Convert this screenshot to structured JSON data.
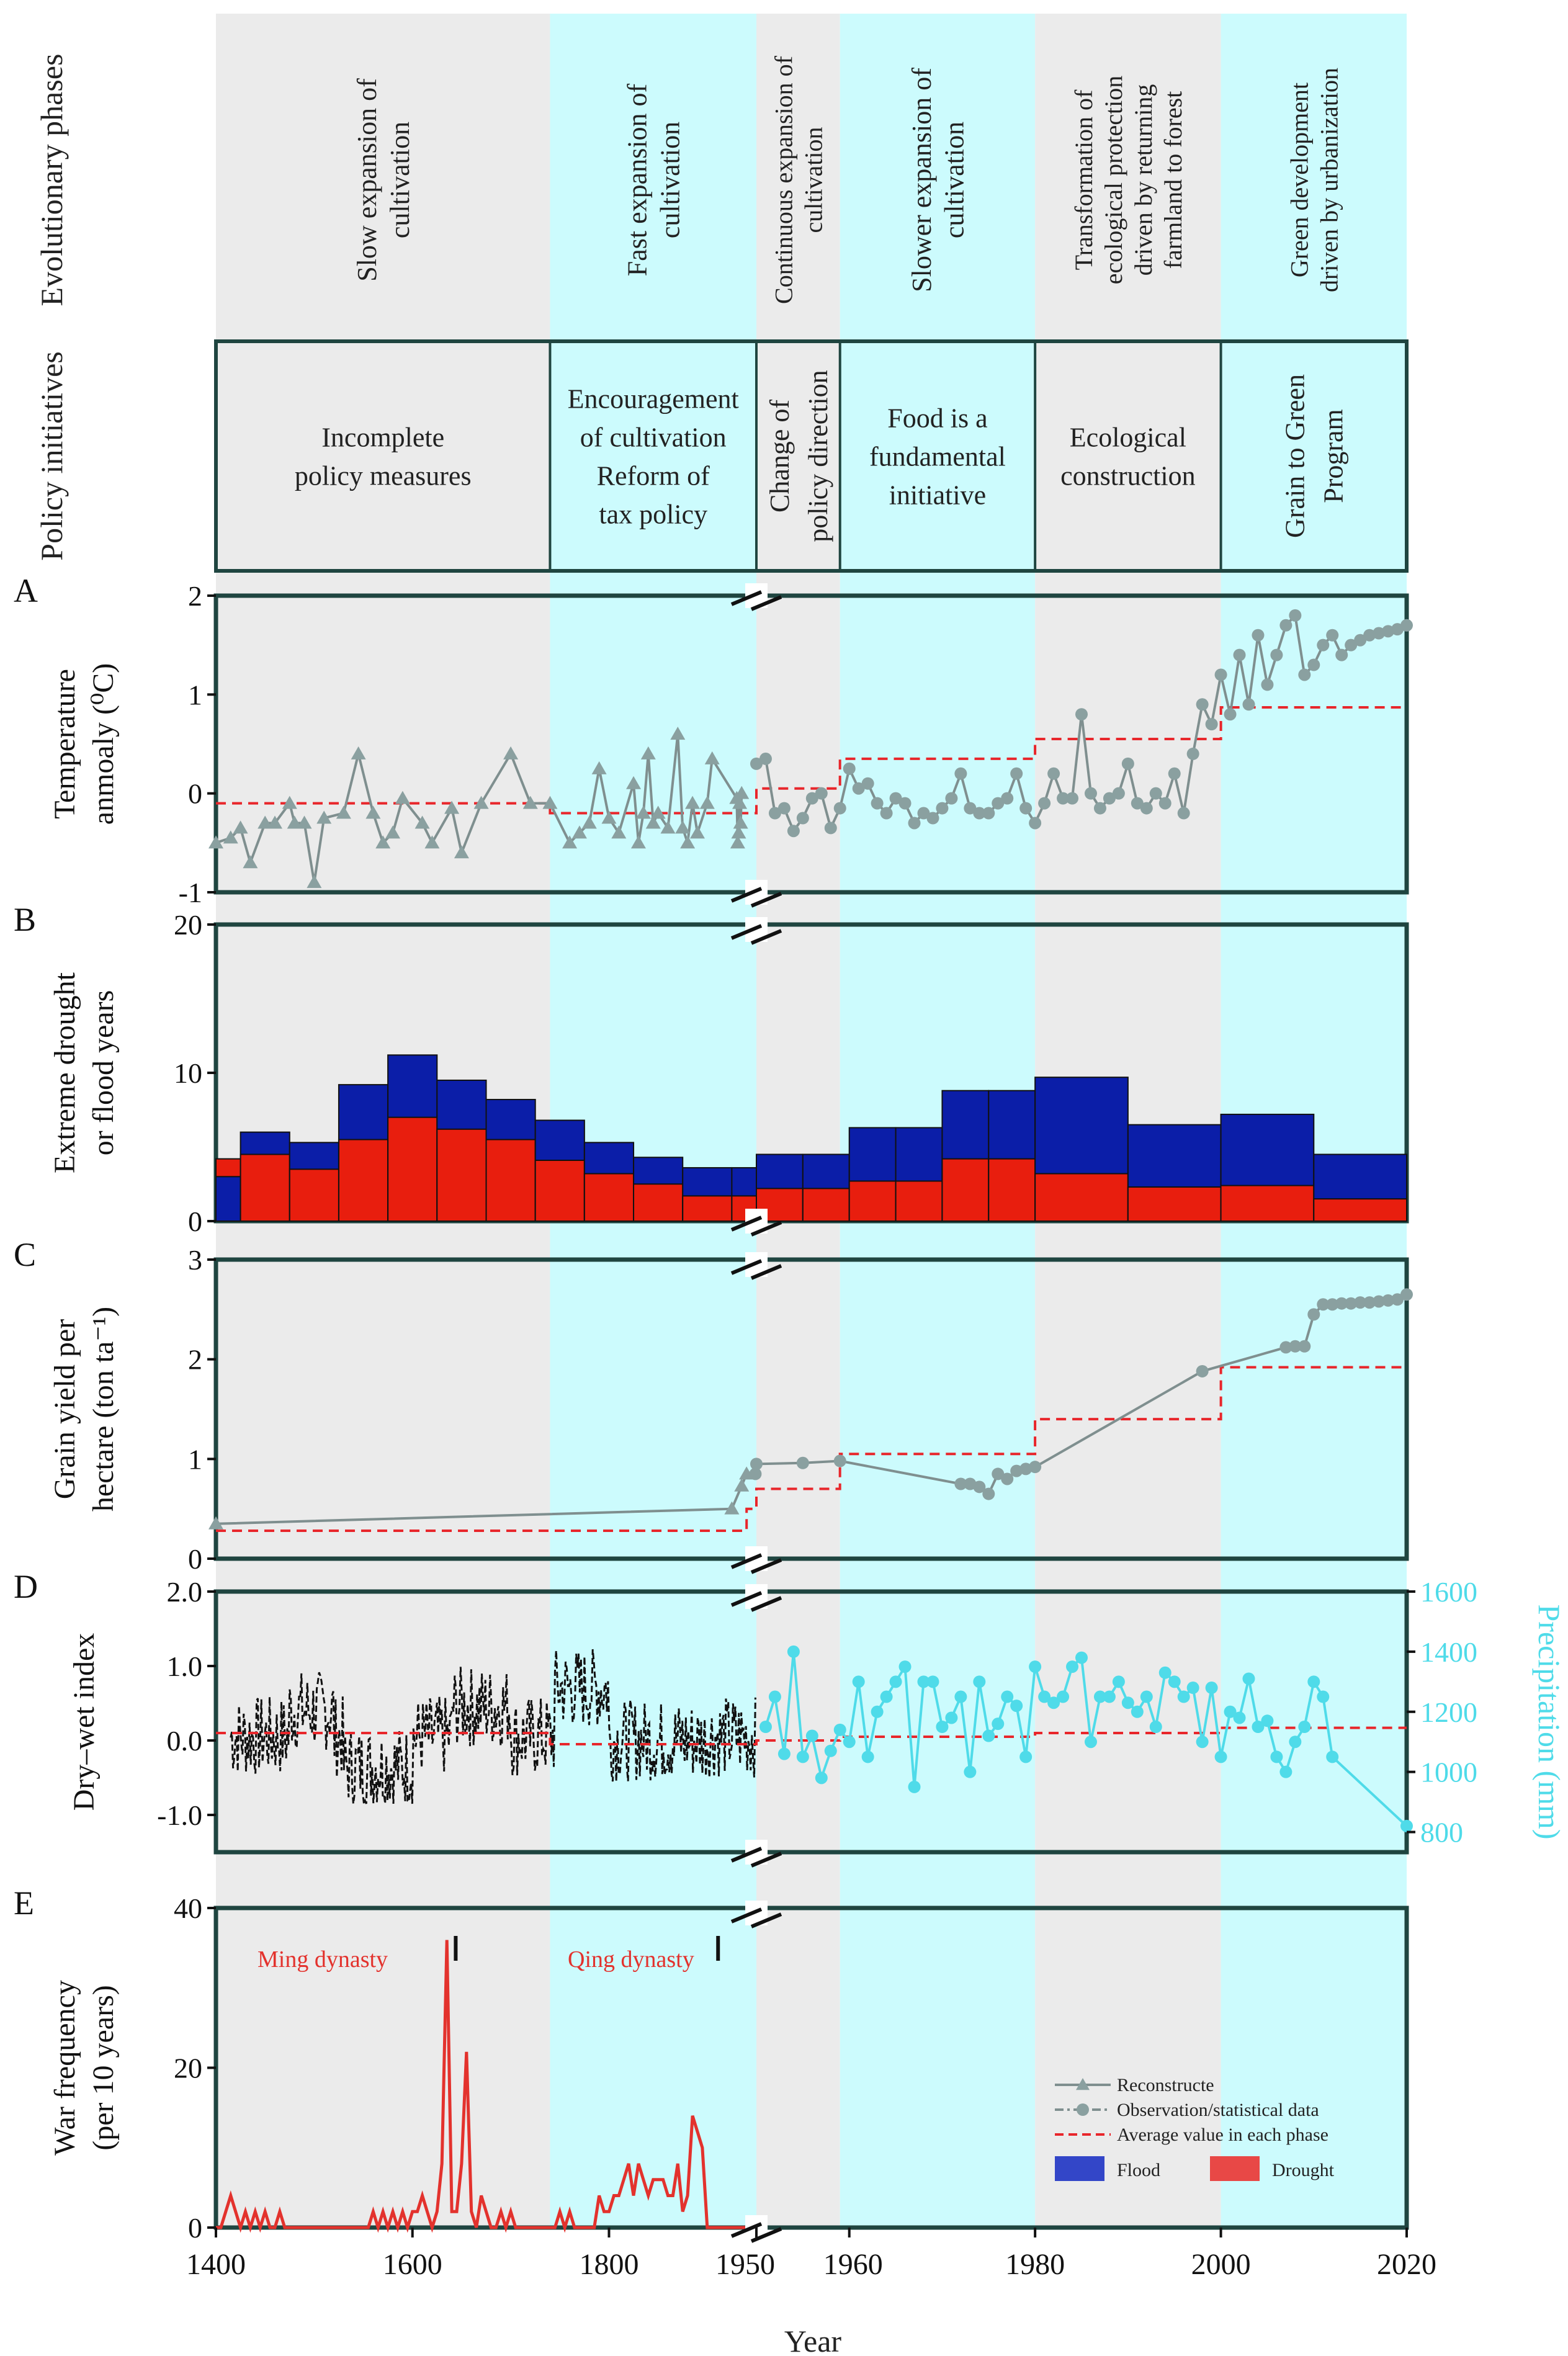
{
  "row_labels": {
    "phases": "Evolutionary phases",
    "policies": "Policy initiatives"
  },
  "phases": [
    {
      "from": 1400,
      "to": 1740,
      "shade": "gray",
      "label": "Slow expansion of cultivation",
      "policy": "Incomplete policy measures"
    },
    {
      "from": 1740,
      "to": 1950,
      "shade": "cyan",
      "label": "Fast expansion of cultivation",
      "policy": "Encouragement of cultivation Reform of tax policy"
    },
    {
      "from": 1950,
      "to": 1959,
      "shade": "gray",
      "label": "Continuous expansion of cultivation",
      "policy": "Change of policy direction"
    },
    {
      "from": 1959,
      "to": 1980,
      "shade": "cyan",
      "label": "Slower expansion of cultivation",
      "policy": "Food is a fundamental initiative"
    },
    {
      "from": 1980,
      "to": 2000,
      "shade": "gray",
      "label": "Transformation of ecological protection driven by returning farmland to forest",
      "policy": "Ecological construction"
    },
    {
      "from": 2000,
      "to": 2020,
      "shade": "cyan",
      "label": "Green development driven by urbanization",
      "policy": "Grain to Green Program"
    }
  ],
  "chart_data": [
    {
      "id": "A",
      "type": "line",
      "ylabel": "Temperature anmoaly (⁰C)",
      "ylim": [
        -1,
        2
      ],
      "yticks": [
        "-1",
        "0",
        "1",
        "2"
      ],
      "series": [
        {
          "name": "Reconstructe",
          "x": [
            1400,
            1415,
            1425,
            1435,
            1450,
            1460,
            1475,
            1480,
            1490,
            1500,
            1510,
            1530,
            1545,
            1560,
            1570,
            1580,
            1590,
            1610,
            1620,
            1640,
            1650,
            1670,
            1700,
            1720,
            1740,
            1760,
            1770,
            1780,
            1790,
            1800,
            1810,
            1825,
            1830,
            1835,
            1840,
            1845,
            1850,
            1860,
            1870,
            1875,
            1880,
            1885,
            1890,
            1900,
            1905,
            1930,
            1931,
            1932,
            1933,
            1934,
            1935
          ],
          "y": [
            -0.5,
            -0.45,
            -0.35,
            -0.7,
            -0.3,
            -0.3,
            -0.1,
            -0.3,
            -0.3,
            -0.9,
            -0.25,
            -0.2,
            0.4,
            -0.2,
            -0.5,
            -0.4,
            -0.05,
            -0.3,
            -0.5,
            -0.15,
            -0.6,
            -0.1,
            0.4,
            -0.1,
            -0.1,
            -0.5,
            -0.4,
            -0.3,
            0.25,
            -0.25,
            -0.4,
            0.1,
            -0.5,
            -0.2,
            0.4,
            -0.3,
            -0.2,
            -0.35,
            0.6,
            -0.35,
            -0.5,
            -0.1,
            -0.4,
            -0.1,
            0.35,
            -0.05,
            -0.5,
            -0.4,
            -0.1,
            -0.3,
            0.0
          ]
        },
        {
          "name": "Observation/statistical data",
          "x": [
            1950,
            1951,
            1952,
            1953,
            1954,
            1955,
            1956,
            1957,
            1958,
            1959,
            1960,
            1961,
            1962,
            1963,
            1964,
            1965,
            1966,
            1967,
            1968,
            1969,
            1970,
            1971,
            1972,
            1973,
            1974,
            1975,
            1976,
            1977,
            1978,
            1979,
            1980,
            1981,
            1982,
            1983,
            1984,
            1985,
            1986,
            1987,
            1988,
            1989,
            1990,
            1991,
            1992,
            1993,
            1994,
            1995,
            1996,
            1997,
            1998,
            1999,
            2000,
            2001,
            2002,
            2003,
            2004,
            2005,
            2006,
            2007,
            2008,
            2009,
            2010,
            2011,
            2012,
            2013,
            2014,
            2015,
            2016,
            2017,
            2018,
            2019,
            2020
          ],
          "y": [
            0.3,
            0.35,
            -0.2,
            -0.15,
            -0.38,
            -0.25,
            -0.05,
            0.0,
            -0.35,
            -0.15,
            0.25,
            0.05,
            0.1,
            -0.1,
            -0.2,
            -0.05,
            -0.1,
            -0.3,
            -0.2,
            -0.25,
            -0.15,
            -0.05,
            0.2,
            -0.15,
            -0.2,
            -0.2,
            -0.1,
            -0.05,
            0.2,
            -0.15,
            -0.3,
            -0.1,
            0.2,
            -0.05,
            -0.05,
            0.8,
            0.0,
            -0.15,
            -0.05,
            0.0,
            0.3,
            -0.1,
            -0.15,
            0.0,
            -0.1,
            0.2,
            -0.2,
            0.4,
            0.9,
            0.7,
            1.2,
            0.8,
            1.4,
            0.9,
            1.6,
            1.1,
            1.4,
            1.7,
            1.8,
            1.2,
            1.3,
            1.5,
            1.6,
            1.4,
            1.5,
            1.55,
            1.6,
            1.62,
            1.64,
            1.66,
            1.7
          ]
        },
        {
          "name": "Average value in each phase",
          "x": [
            1400,
            1740,
            1740,
            1950,
            1950,
            1959,
            1959,
            1980,
            1980,
            2000,
            2000,
            2020
          ],
          "y": [
            -0.1,
            -0.1,
            -0.2,
            -0.2,
            0.05,
            0.05,
            0.35,
            0.35,
            0.55,
            0.55,
            0.87,
            0.87
          ]
        }
      ]
    },
    {
      "id": "B",
      "type": "bar",
      "ylabel": "Extreme drought or flood years",
      "ylim": [
        0,
        20
      ],
      "yticks": [
        "0",
        "10",
        "20"
      ],
      "bins": [
        [
          1400,
          1425
        ],
        [
          1425,
          1475
        ],
        [
          1475,
          1525
        ],
        [
          1525,
          1575
        ],
        [
          1575,
          1625
        ],
        [
          1625,
          1675
        ],
        [
          1675,
          1725
        ],
        [
          1725,
          1775
        ],
        [
          1775,
          1825
        ],
        [
          1825,
          1875
        ],
        [
          1875,
          1925
        ],
        [
          1925,
          1950
        ],
        [
          1950,
          1955
        ],
        [
          1955,
          1960
        ],
        [
          1960,
          1965
        ],
        [
          1965,
          1970
        ],
        [
          1970,
          1975
        ],
        [
          1975,
          1980
        ],
        [
          1980,
          1990
        ],
        [
          1990,
          2000
        ],
        [
          2000,
          2010
        ],
        [
          2010,
          2020
        ]
      ],
      "series": [
        {
          "name": "Flood",
          "values": [
            3.0,
            6.0,
            5.3,
            9.2,
            11.2,
            9.5,
            8.2,
            6.8,
            5.3,
            4.3,
            3.6,
            3.6,
            4.5,
            4.5,
            6.3,
            6.3,
            8.8,
            8.8,
            9.7,
            6.5,
            7.2,
            4.5
          ]
        },
        {
          "name": "Drought",
          "values": [
            4.2,
            4.5,
            3.5,
            5.5,
            7.0,
            6.2,
            5.5,
            4.1,
            3.2,
            2.5,
            1.7,
            1.7,
            2.2,
            2.2,
            2.7,
            2.7,
            4.2,
            4.2,
            3.2,
            2.3,
            2.4,
            1.5
          ]
        }
      ]
    },
    {
      "id": "C",
      "type": "line",
      "ylabel": "Grain yield per hectare (ton ta⁻¹)",
      "ylim": [
        0,
        3
      ],
      "yticks": [
        "0",
        "1",
        "2",
        "3"
      ],
      "series": [
        {
          "name": "Reconstructe",
          "x": [
            1400,
            1925,
            1935,
            1940
          ],
          "y": [
            0.35,
            0.5,
            0.73,
            0.85
          ]
        },
        {
          "name": "Observation/statistical data",
          "x": [
            1949,
            1950,
            1955,
            1959,
            1972,
            1973,
            1974,
            1975,
            1976,
            1977,
            1978,
            1979,
            1980,
            1998,
            2007,
            2008,
            2009,
            2010,
            2011,
            2012,
            2013,
            2014,
            2015,
            2016,
            2017,
            2018,
            2019,
            2020
          ],
          "y": [
            0.85,
            0.95,
            0.96,
            0.98,
            0.75,
            0.75,
            0.72,
            0.65,
            0.85,
            0.8,
            0.88,
            0.9,
            0.92,
            1.88,
            2.12,
            2.13,
            2.13,
            2.45,
            2.55,
            2.55,
            2.56,
            2.56,
            2.57,
            2.57,
            2.58,
            2.59,
            2.6,
            2.65
          ]
        },
        {
          "name": "Average value in each phase",
          "x": [
            1400,
            1940,
            1940,
            1950,
            1950,
            1959,
            1959,
            1980,
            1980,
            2000,
            2000,
            2020
          ],
          "y": [
            0.28,
            0.28,
            0.5,
            0.5,
            0.7,
            0.7,
            1.05,
            1.05,
            1.4,
            1.4,
            1.92,
            1.92
          ]
        }
      ]
    },
    {
      "id": "D",
      "type": "line",
      "ylabel": "Dry–wet index",
      "y2label": "Precipitation (mm)",
      "ylim": [
        -1.5,
        2.0
      ],
      "yticks": [
        "-1.0",
        "0.0",
        "1.0",
        "2.0"
      ],
      "y2lim": [
        733,
        1600
      ],
      "y2ticks": [
        "800",
        "1000",
        "1200",
        "1400",
        "1600"
      ],
      "series": [
        {
          "name": "Dry–wet index (reconstructe)",
          "seed": 7
        },
        {
          "name": "Precipitation",
          "x": [
            1951,
            1952,
            1953,
            1954,
            1955,
            1956,
            1957,
            1958,
            1959,
            1960,
            1961,
            1962,
            1963,
            1964,
            1965,
            1966,
            1967,
            1968,
            1969,
            1970,
            1971,
            1972,
            1973,
            1974,
            1975,
            1976,
            1977,
            1978,
            1979,
            1980,
            1981,
            1982,
            1983,
            1984,
            1985,
            1986,
            1987,
            1988,
            1989,
            1990,
            1991,
            1992,
            1993,
            1994,
            1995,
            1996,
            1997,
            1998,
            1999,
            2000,
            2001,
            2002,
            2003,
            2004,
            2005,
            2006,
            2007,
            2008,
            2009,
            2010,
            2011,
            2012,
            2020
          ],
          "y": [
            1150,
            1250,
            1060,
            1400,
            1050,
            1120,
            980,
            1070,
            1140,
            1100,
            1300,
            1050,
            1200,
            1250,
            1300,
            1350,
            950,
            1300,
            1300,
            1150,
            1180,
            1250,
            1000,
            1300,
            1120,
            1160,
            1250,
            1220,
            1050,
            1350,
            1250,
            1230,
            1250,
            1350,
            1380,
            1100,
            1250,
            1250,
            1300,
            1230,
            1200,
            1250,
            1150,
            1330,
            1300,
            1250,
            1280,
            1100,
            1280,
            1050,
            1200,
            1180,
            1310,
            1150,
            1170,
            1050,
            1000,
            1100,
            1150,
            1300,
            1250,
            1050,
            820
          ]
        },
        {
          "name": "Average value in each phase",
          "x": [
            1400,
            1740,
            1740,
            1950,
            1950,
            1959,
            1959,
            1980,
            1980,
            2000,
            2000,
            2020
          ],
          "y": [
            0.1,
            0.1,
            -0.05,
            -0.05,
            0.0,
            0.0,
            0.05,
            0.05,
            0.1,
            0.1,
            0.17,
            0.17
          ]
        }
      ]
    },
    {
      "id": "E",
      "type": "line",
      "ylabel": "War frequency (per 10 years)",
      "ylim": [
        0,
        40
      ],
      "yticks": [
        "0",
        "20",
        "40"
      ],
      "annotations": [
        "Ming dynasty",
        "Qing dynasty"
      ],
      "series": [
        {
          "name": "War frequency",
          "x": [
            1400,
            1405,
            1410,
            1415,
            1420,
            1425,
            1430,
            1435,
            1440,
            1445,
            1450,
            1455,
            1460,
            1465,
            1470,
            1475,
            1480,
            1485,
            1490,
            1495,
            1500,
            1505,
            1510,
            1515,
            1520,
            1525,
            1530,
            1535,
            1540,
            1545,
            1550,
            1555,
            1560,
            1565,
            1570,
            1575,
            1580,
            1585,
            1590,
            1595,
            1600,
            1605,
            1610,
            1615,
            1620,
            1625,
            1630,
            1635,
            1640,
            1645,
            1650,
            1655,
            1660,
            1665,
            1670,
            1675,
            1680,
            1685,
            1690,
            1695,
            1700,
            1705,
            1710,
            1715,
            1720,
            1725,
            1730,
            1735,
            1740,
            1745,
            1750,
            1755,
            1760,
            1765,
            1770,
            1775,
            1780,
            1785,
            1790,
            1795,
            1800,
            1805,
            1810,
            1815,
            1820,
            1825,
            1830,
            1835,
            1840,
            1845,
            1850,
            1855,
            1860,
            1865,
            1870,
            1875,
            1880,
            1885,
            1890,
            1895,
            1900,
            1905,
            1910,
            1915,
            1920,
            1925,
            1930,
            1935,
            1940,
            1945,
            1950
          ],
          "y": [
            0,
            0,
            2,
            4,
            2,
            0,
            2,
            0,
            2,
            0,
            2,
            0,
            0,
            2,
            0,
            0,
            0,
            0,
            0,
            0,
            0,
            0,
            0,
            0,
            0,
            0,
            0,
            0,
            0,
            0,
            0,
            0,
            2,
            0,
            2,
            0,
            2,
            0,
            2,
            0,
            2,
            2,
            4,
            2,
            0,
            2,
            8,
            36,
            2,
            2,
            8,
            22,
            2,
            0,
            4,
            2,
            0,
            0,
            2,
            0,
            2,
            0,
            0,
            0,
            0,
            0,
            0,
            0,
            0,
            0,
            2,
            0,
            2,
            0,
            0,
            0,
            0,
            0,
            4,
            2,
            2,
            4,
            4,
            6,
            8,
            4,
            8,
            6,
            4,
            6,
            6,
            6,
            4,
            4,
            8,
            2,
            4,
            14,
            12,
            10,
            0,
            0,
            0,
            0,
            0,
            0,
            0,
            0,
            0,
            0,
            0
          ]
        }
      ]
    }
  ],
  "legend": {
    "reconstructe": "Reconstructe",
    "observation": "Observation/statistical data",
    "average": "Average value in each phase",
    "flood": "Flood",
    "drought": "Drought"
  },
  "xaxis": {
    "label": "Year",
    "ticks": [
      "1400",
      "1600",
      "1800",
      "1950",
      "1960",
      "1980",
      "2000",
      "2020"
    ]
  },
  "colors": {
    "gray_band": "#ebebeb",
    "cyan_band": "#ccfbfd",
    "panel_border": "#1f4540",
    "line_gray": "#7f8f8f",
    "marker_gray": "#8aa0a0",
    "avg_red": "#e8262b",
    "flood": "#0b1ea8",
    "drought": "#e81e0e",
    "precip": "#4fdbe9",
    "war": "#e3322d"
  }
}
